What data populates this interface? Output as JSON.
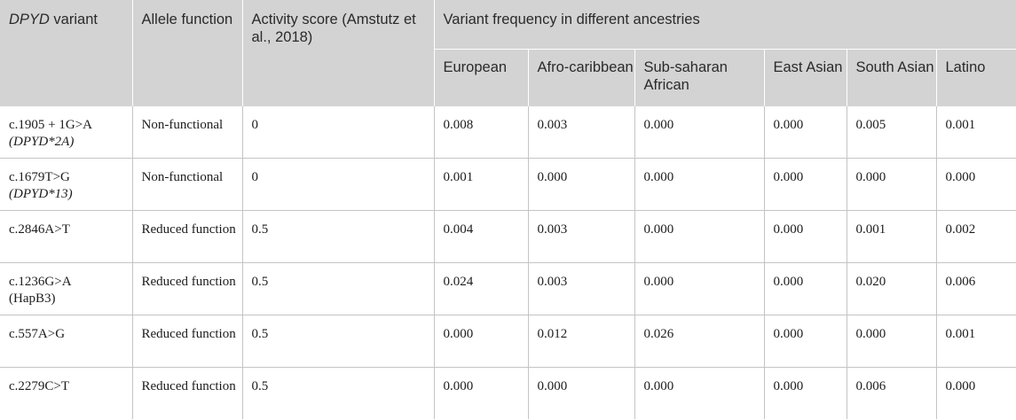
{
  "header": {
    "variant_label_italic": "DPYD",
    "variant_label_rest": " variant",
    "allele_function": "Allele function",
    "activity_score": "Activity score (Amstutz et al., 2018)",
    "frequency_group": "Variant frequency in different ancestries",
    "ancestries": [
      "European",
      "Afro-caribbean",
      "Sub-saharan African",
      "East Asian",
      "South Asian",
      "Latino"
    ]
  },
  "rows": [
    {
      "variant": "c.1905 + 1G>A",
      "variant_alias": "(DPYD*2A)",
      "alias_italic": true,
      "allele_function": "Non-functional",
      "activity_score": "0",
      "freq": [
        "0.008",
        "0.003",
        "0.000",
        "0.000",
        "0.005",
        "0.001"
      ]
    },
    {
      "variant": "c.1679T>G",
      "variant_alias": "(DPYD*13)",
      "alias_italic": true,
      "allele_function": "Non-functional",
      "activity_score": "0",
      "freq": [
        "0.001",
        "0.000",
        "0.000",
        "0.000",
        "0.000",
        "0.000"
      ]
    },
    {
      "variant": "c.2846A>T",
      "variant_alias": "",
      "alias_italic": false,
      "allele_function": "Reduced function",
      "activity_score": "0.5",
      "freq": [
        "0.004",
        "0.003",
        "0.000",
        "0.000",
        "0.001",
        "0.002"
      ]
    },
    {
      "variant": "c.1236G>A",
      "variant_alias": "(HapB3)",
      "alias_italic": false,
      "allele_function": "Reduced function",
      "activity_score": "0.5",
      "freq": [
        "0.024",
        "0.003",
        "0.000",
        "0.000",
        "0.020",
        "0.006"
      ]
    },
    {
      "variant": "c.557A>G",
      "variant_alias": "",
      "alias_italic": false,
      "allele_function": "Reduced function",
      "activity_score": "0.5",
      "freq": [
        "0.000",
        "0.012",
        "0.026",
        "0.000",
        "0.000",
        "0.001"
      ]
    },
    {
      "variant": "c.2279C>T",
      "variant_alias": "",
      "alias_italic": false,
      "allele_function": "Reduced function",
      "activity_score": "0.5",
      "freq": [
        "0.000",
        "0.000",
        "0.000",
        "0.000",
        "0.006",
        "0.000"
      ]
    }
  ]
}
